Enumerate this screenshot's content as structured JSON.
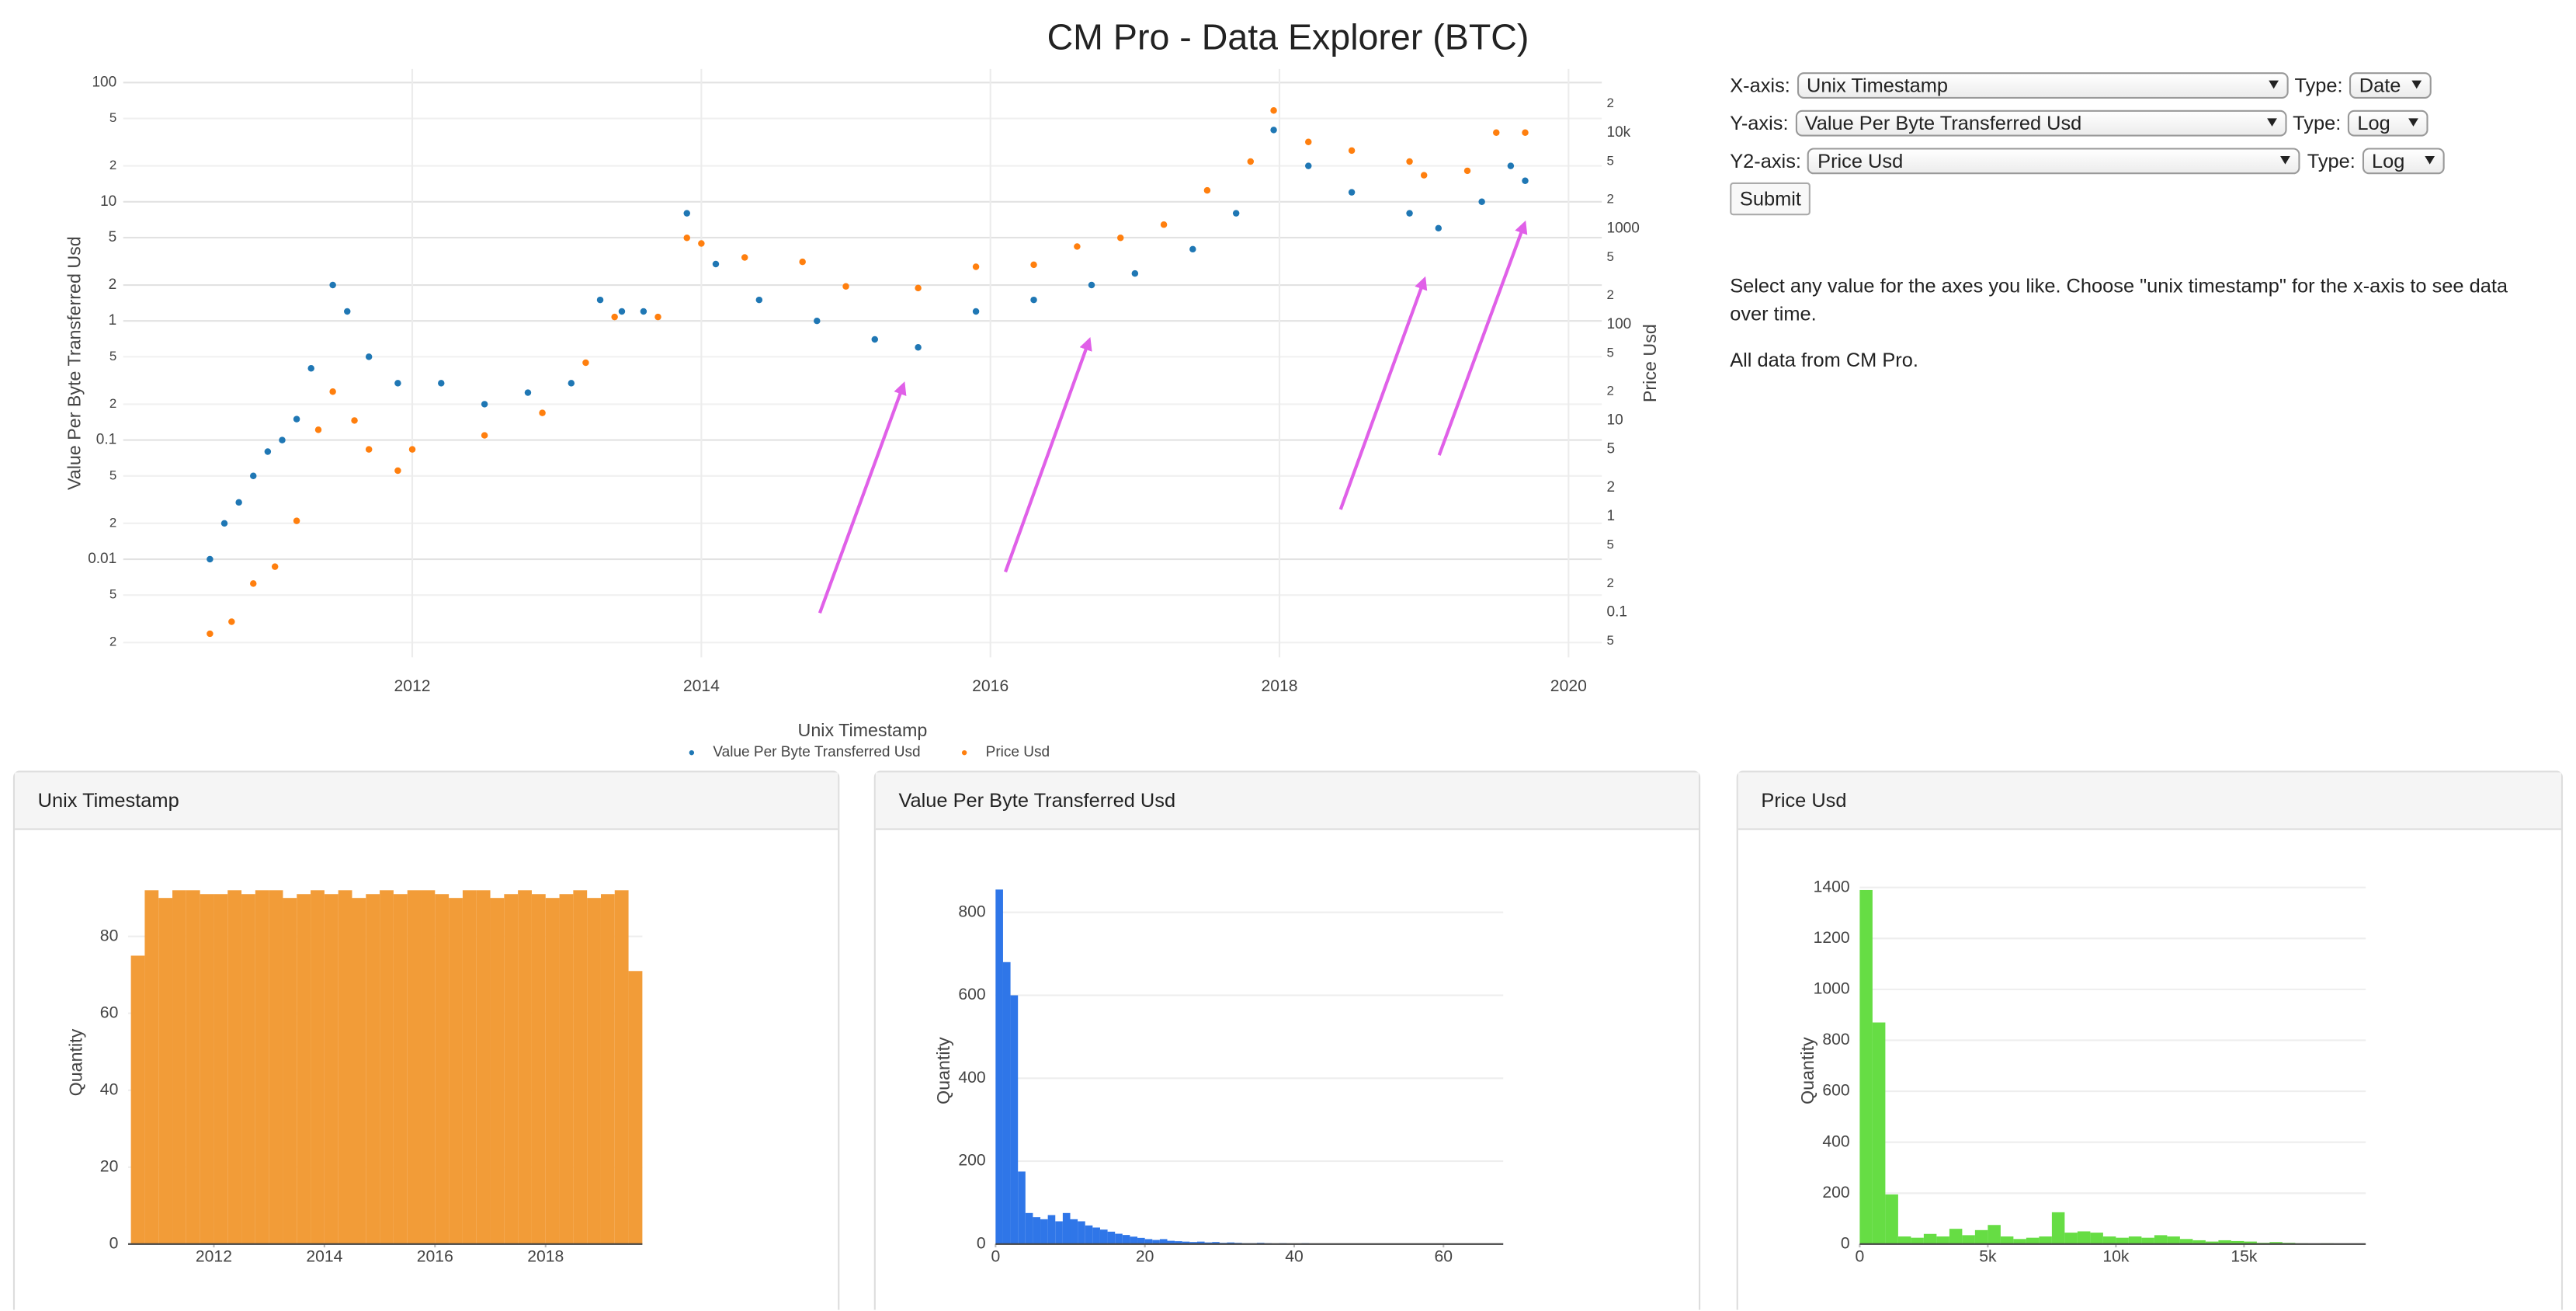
{
  "header": {
    "title": "CM Pro - Data Explorer (BTC)"
  },
  "form": {
    "rows": [
      {
        "label": "X-axis:",
        "select": "Unix Timestamp",
        "type_label": "Type:",
        "type": "Date"
      },
      {
        "label": "Y-axis:",
        "select": "Value Per Byte Transferred Usd",
        "type_label": "Type:",
        "type": "Log"
      },
      {
        "label": "Y2-axis:",
        "select": "Price Usd",
        "type_label": "Type:",
        "type": "Log"
      }
    ],
    "button": "Submit"
  },
  "description": [
    "Select any value for the axes you like. Choose \"unix timestamp\" for the x-axis to see data over time.",
    "All data from CM Pro."
  ],
  "chart_data": [
    {
      "type": "scatter",
      "x_label": "Unix Timestamp",
      "y_label": "Value Per Byte Transferred Usd",
      "y2_label": "Price Usd",
      "log_y": true,
      "log_y2": true,
      "grid": true,
      "xlim": [
        2010,
        2020.23
      ],
      "xticks": [
        2012,
        2014,
        2016,
        2018,
        2020
      ],
      "ylim": [
        0.0015,
        130
      ],
      "yticks": [
        100,
        {
          "value": 50,
          "label": "5"
        },
        {
          "value": 20,
          "label": "2"
        },
        10,
        5,
        2,
        1,
        {
          "value": 0.5,
          "label": "5"
        },
        {
          "value": 0.2,
          "label": "2"
        },
        0.1,
        {
          "value": 0.05,
          "label": "5"
        },
        {
          "value": 0.02,
          "label": "2"
        },
        0.01,
        {
          "value": 0.005,
          "label": "5"
        },
        {
          "value": 0.002,
          "label": "2"
        }
      ],
      "y2lim": [
        0.034,
        46000
      ],
      "y2ticks": [
        {
          "value": 20000,
          "label": "2"
        },
        {
          "value": 10000,
          "label": "10k"
        },
        {
          "value": 5000,
          "label": "5"
        },
        {
          "value": 2000,
          "label": "2"
        },
        1000,
        {
          "value": 500,
          "label": "5"
        },
        {
          "value": 200,
          "label": "2"
        },
        100,
        {
          "value": 50,
          "label": "5"
        },
        {
          "value": 20,
          "label": "2"
        },
        10,
        5,
        2,
        1,
        {
          "value": 0.5,
          "label": "5"
        },
        {
          "value": 0.2,
          "label": "2"
        },
        0.1,
        {
          "value": 0.05,
          "label": "5"
        }
      ],
      "series": [
        {
          "name": "Value Per Byte Transferred Usd",
          "color": "#1f77b4",
          "x": [
            2010.6,
            2010.7,
            2010.8,
            2010.9,
            2011.0,
            2011.1,
            2011.2,
            2011.3,
            2011.45,
            2011.55,
            2011.7,
            2011.9,
            2012.2,
            2012.5,
            2012.8,
            2013.1,
            2013.3,
            2013.45,
            2013.6,
            2013.9,
            2014.1,
            2014.4,
            2014.8,
            2015.2,
            2015.5,
            2015.9,
            2016.3,
            2016.7,
            2017.0,
            2017.4,
            2017.7,
            2017.96,
            2018.2,
            2018.5,
            2018.9,
            2019.1,
            2019.4,
            2019.6,
            2019.7
          ],
          "values": [
            0.01,
            0.02,
            0.03,
            0.05,
            0.08,
            0.1,
            0.15,
            0.4,
            2,
            1.2,
            0.5,
            0.3,
            0.3,
            0.2,
            0.25,
            0.3,
            1.5,
            1.2,
            1.2,
            8,
            3,
            1.5,
            1,
            0.7,
            0.6,
            1.2,
            1.5,
            2,
            2.5,
            4,
            8,
            40,
            20,
            12,
            8,
            6,
            10,
            20,
            15
          ]
        },
        {
          "name": "Price Usd",
          "color": "#ff7f0e",
          "axis": "y2",
          "x": [
            2010.6,
            2010.75,
            2010.9,
            2011.05,
            2011.2,
            2011.35,
            2011.45,
            2011.6,
            2011.7,
            2011.9,
            2012.0,
            2012.5,
            2012.9,
            2013.2,
            2013.4,
            2013.7,
            2013.9,
            2014.0,
            2014.3,
            2014.7,
            2015.0,
            2015.5,
            2015.9,
            2016.3,
            2016.6,
            2016.9,
            2017.2,
            2017.5,
            2017.8,
            2017.96,
            2018.2,
            2018.5,
            2018.9,
            2019.0,
            2019.3,
            2019.5,
            2019.7
          ],
          "values": [
            0.06,
            0.08,
            0.2,
            0.3,
            0.9,
            8,
            20,
            10,
            5,
            3,
            5,
            7,
            12,
            40,
            120,
            120,
            800,
            700,
            500,
            450,
            250,
            240,
            400,
            420,
            650,
            800,
            1100,
            2500,
            5000,
            17000,
            8000,
            6500,
            5000,
            3600,
            4000,
            10000,
            10000
          ]
        }
      ]
    },
    {
      "type": "histogram",
      "title": "Unix Timestamp",
      "y_label": "Quantity",
      "color": "#f29c38",
      "xlim": [
        2010.45,
        2019.75
      ],
      "xticks": [
        2012,
        2014,
        2016,
        2018
      ],
      "ylim": [
        0,
        97
      ],
      "yticks": [
        0,
        20,
        40,
        60,
        80
      ],
      "bins": [
        2010.5,
        2010.75,
        2011,
        2011.25,
        2011.5,
        2011.75,
        2012,
        2012.25,
        2012.5,
        2012.75,
        2013,
        2013.25,
        2013.5,
        2013.75,
        2014,
        2014.25,
        2014.5,
        2014.75,
        2015,
        2015.25,
        2015.5,
        2015.75,
        2016,
        2016.25,
        2016.5,
        2016.75,
        2017,
        2017.25,
        2017.5,
        2017.75,
        2018,
        2018.25,
        2018.5,
        2018.75,
        2019,
        2019.25,
        2019.5,
        2019.75
      ],
      "values": [
        75,
        92,
        90,
        92,
        92,
        91,
        91,
        92,
        91,
        92,
        92,
        90,
        91,
        92,
        91,
        92,
        90,
        91,
        92,
        91,
        92,
        92,
        91,
        90,
        92,
        92,
        90,
        91,
        92,
        91,
        90,
        91,
        92,
        90,
        91,
        92,
        71
      ]
    },
    {
      "type": "histogram",
      "title": "Value Per Byte Transferred Usd",
      "y_label": "Quantity",
      "color": "#2f76e8",
      "xlim": [
        0,
        68
      ],
      "xticks": [
        0,
        20,
        40,
        60
      ],
      "ylim": [
        0,
        860
      ],
      "yticks": [
        0,
        200,
        400,
        600,
        800
      ],
      "bins": [
        0,
        1,
        2,
        3,
        4,
        5,
        6,
        7,
        8,
        9,
        10,
        11,
        12,
        13,
        14,
        15,
        16,
        17,
        18,
        19,
        20,
        21,
        22,
        23,
        24,
        25,
        26,
        27,
        28,
        29,
        30,
        31,
        32,
        33,
        34,
        35,
        36,
        37,
        38,
        39,
        40,
        41,
        42,
        43,
        44,
        45,
        46,
        47,
        48,
        49,
        50,
        51,
        52,
        53,
        54,
        55,
        56,
        57,
        58,
        59,
        60,
        61,
        62,
        63,
        64,
        65,
        66,
        67,
        68
      ],
      "values": [
        855,
        680,
        600,
        175,
        75,
        65,
        60,
        70,
        55,
        75,
        60,
        55,
        45,
        40,
        35,
        30,
        25,
        22,
        18,
        15,
        12,
        10,
        12,
        8,
        7,
        6,
        5,
        6,
        4,
        5,
        3,
        4,
        3,
        2,
        2,
        3,
        2,
        1,
        2,
        1,
        1,
        2,
        1,
        1,
        0,
        1,
        1,
        0,
        1,
        0,
        1,
        0,
        0,
        1,
        0,
        0,
        1,
        0,
        0,
        0,
        1,
        0,
        0,
        0,
        0,
        1,
        0,
        1
      ]
    },
    {
      "type": "histogram",
      "title": "Price Usd",
      "y_label": "Quantity",
      "color": "#66dd44",
      "xlim": [
        0,
        19750
      ],
      "xticks": [
        0,
        {
          "value": 5000,
          "label": "5k"
        },
        {
          "value": 10000,
          "label": "10k"
        },
        {
          "value": 15000,
          "label": "15k"
        }
      ],
      "ylim": [
        0,
        1400
      ],
      "yticks": [
        0,
        200,
        400,
        600,
        800,
        1000,
        1200,
        1400
      ],
      "bins": [
        0,
        500,
        1000,
        1500,
        2000,
        2500,
        3000,
        3500,
        4000,
        4500,
        5000,
        5500,
        6000,
        6500,
        7000,
        7500,
        8000,
        8500,
        9000,
        9500,
        10000,
        10500,
        11000,
        11500,
        12000,
        12500,
        13000,
        13500,
        14000,
        14500,
        15000,
        15500,
        16000,
        16500,
        17000,
        17500,
        18000,
        18500,
        19000,
        19500
      ],
      "values": [
        1390,
        870,
        195,
        30,
        25,
        40,
        30,
        60,
        35,
        55,
        75,
        30,
        20,
        25,
        30,
        125,
        45,
        50,
        45,
        30,
        25,
        30,
        25,
        35,
        30,
        20,
        15,
        10,
        15,
        12,
        10,
        5,
        8,
        5,
        3,
        2,
        3,
        1,
        2
      ]
    }
  ]
}
